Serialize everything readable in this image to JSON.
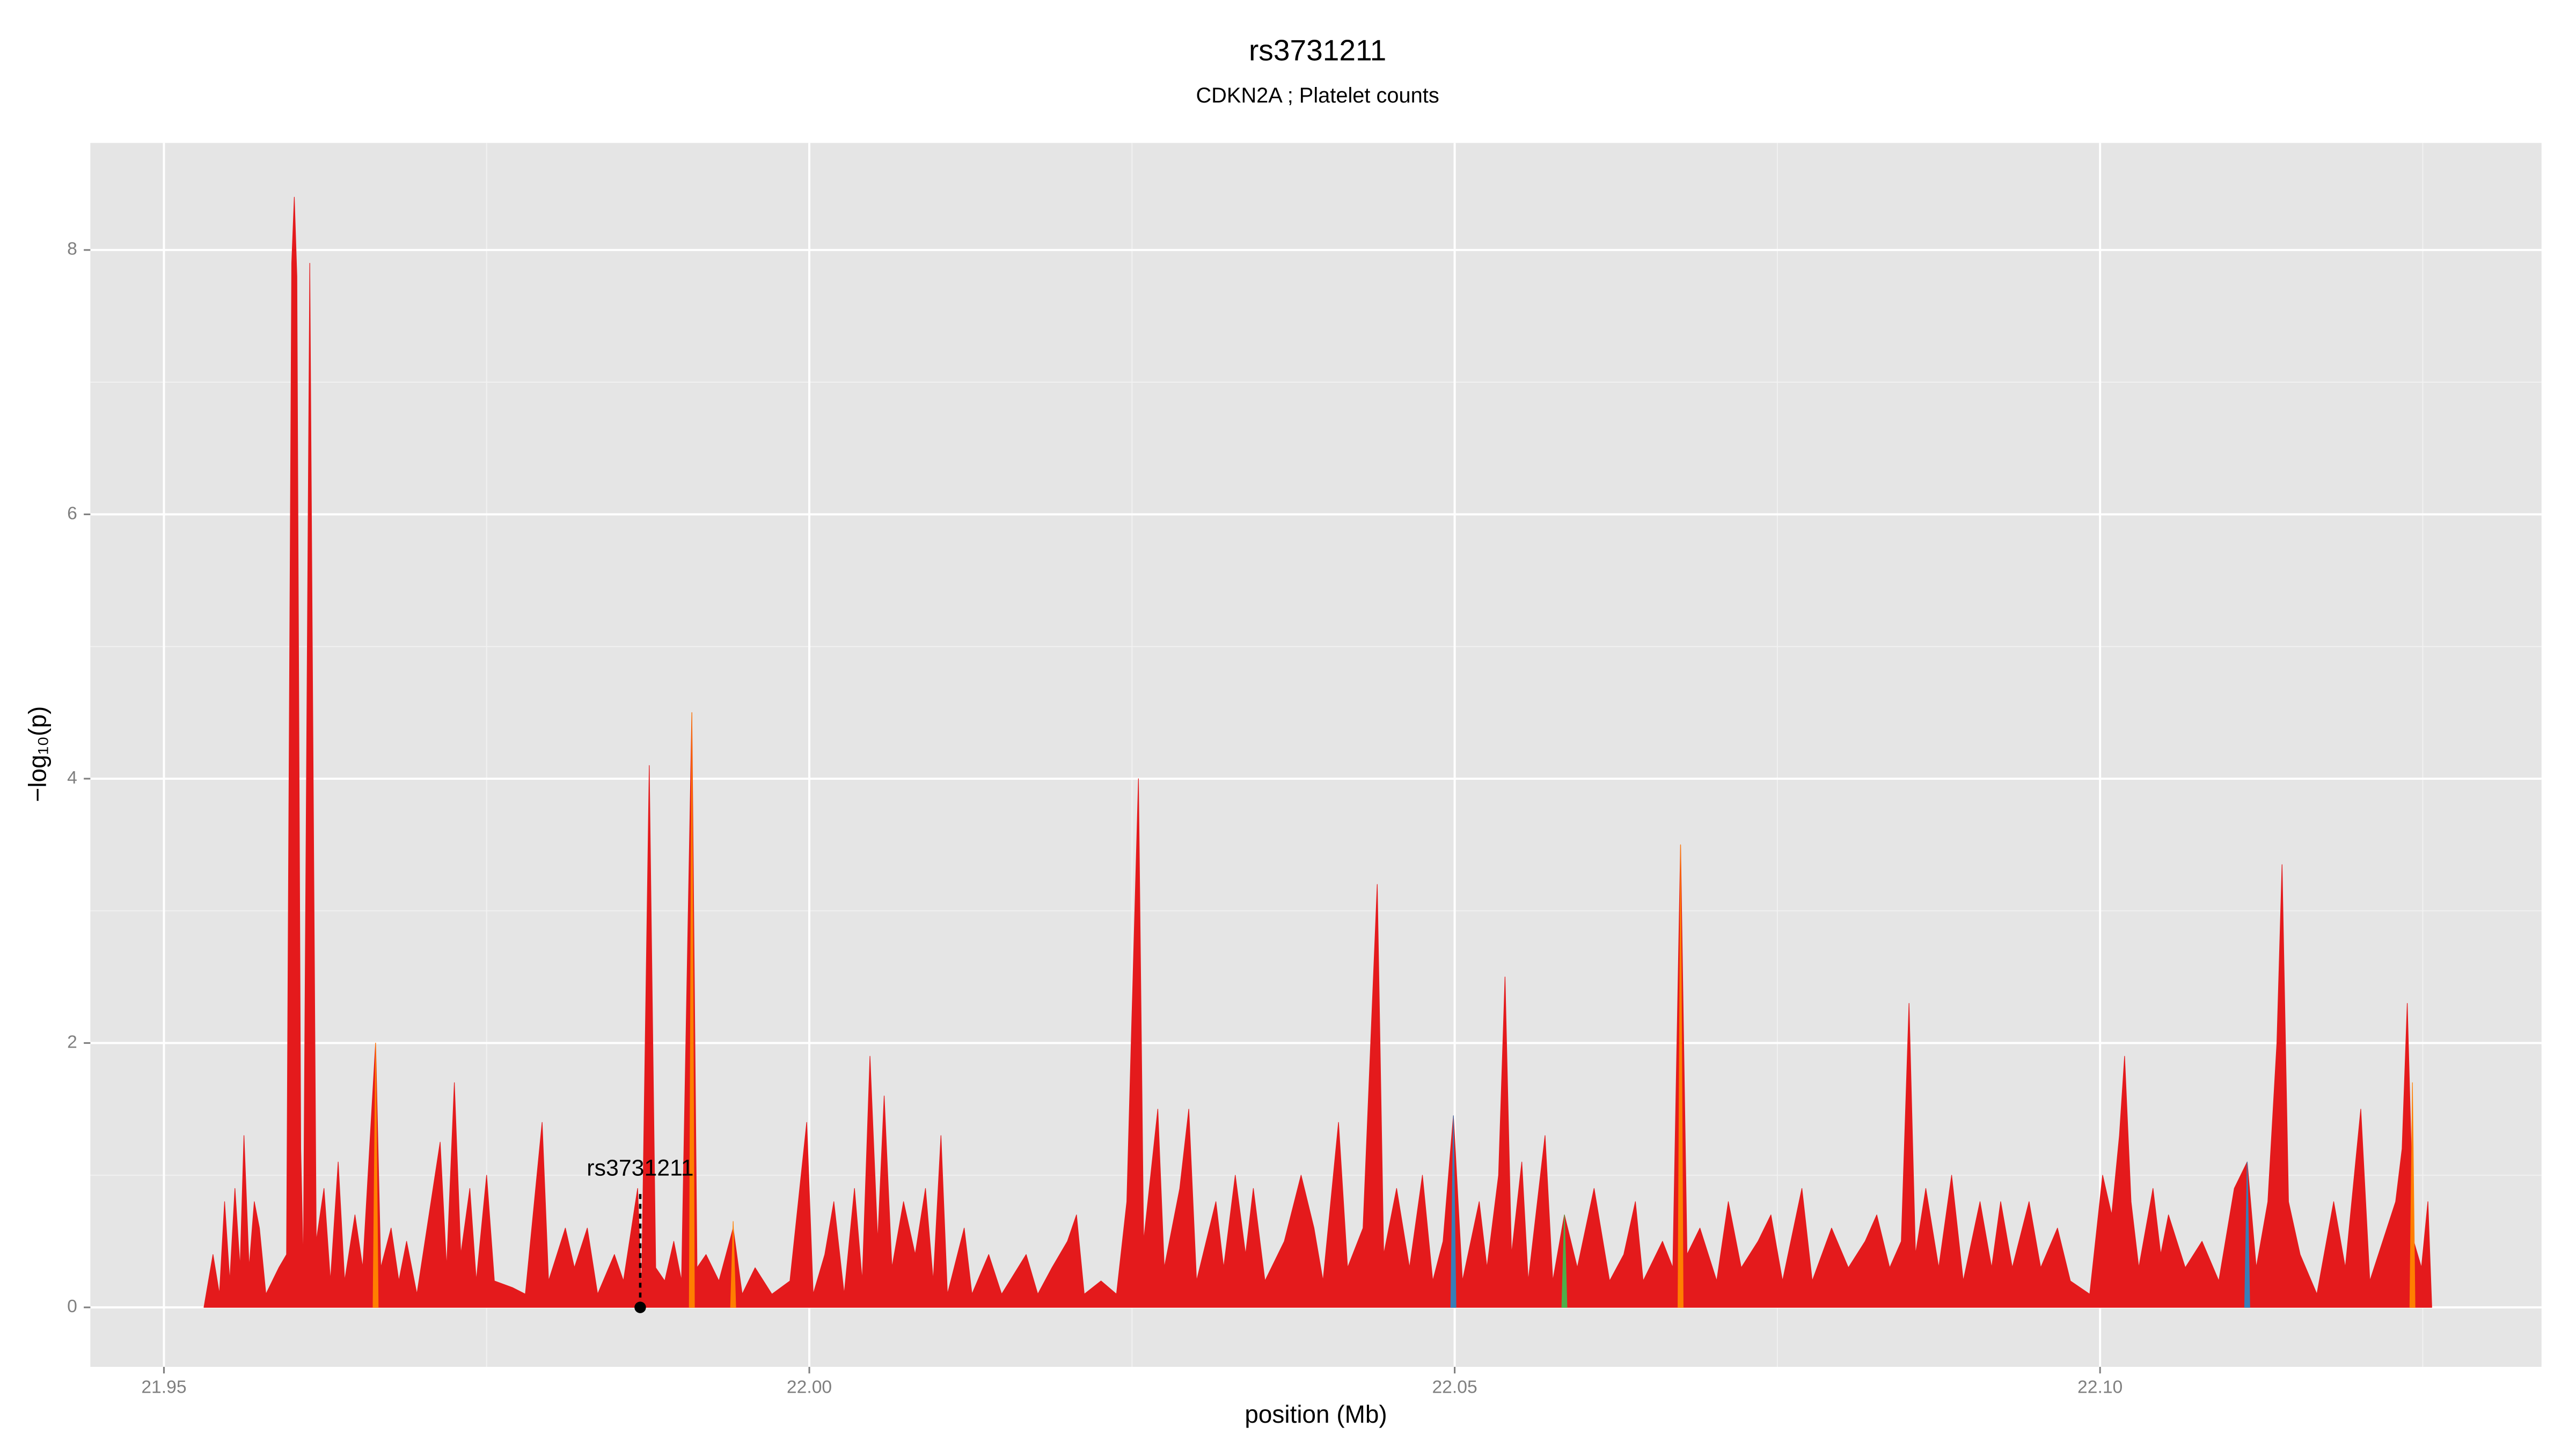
{
  "chart_data": {
    "type": "area",
    "title": "rs3731211",
    "subtitle": "CDKN2A ; Platelet counts",
    "x_label": "position (Mb)",
    "y_label": "−log₁₀(p)",
    "xlim": [
      21.9443,
      22.1342
    ],
    "ylim": [
      -0.45,
      8.81
    ],
    "xticks": [
      {
        "value": 21.95,
        "label": "21.95"
      },
      {
        "value": 22.0,
        "label": "22.00"
      },
      {
        "value": 22.05,
        "label": "22.05"
      },
      {
        "value": 22.1,
        "label": "22.10"
      }
    ],
    "yticks": [
      0,
      2,
      4,
      6,
      8
    ],
    "grid": true,
    "series": [
      {
        "color": "#e41a1c",
        "x": [
          21.9531,
          21.9538,
          21.9543,
          21.9547,
          21.9551,
          21.9555,
          21.9559,
          21.9562,
          21.9566,
          21.957,
          21.9574,
          21.9579,
          21.9589,
          21.9595,
          21.9599,
          21.9601,
          21.9603,
          21.9606,
          21.9608,
          21.9613,
          21.9618,
          21.9624,
          21.9629,
          21.9635,
          21.964,
          21.9648,
          21.9654,
          21.9664,
          21.9668,
          21.9676,
          21.9682,
          21.9688,
          21.9696,
          21.9714,
          21.9719,
          21.9725,
          21.973,
          21.9737,
          21.9742,
          21.975,
          21.9756,
          21.977,
          21.978,
          21.9793,
          21.9798,
          21.9811,
          21.9818,
          21.9828,
          21.9836,
          21.9849,
          21.9856,
          21.9867,
          21.987,
          21.9876,
          21.9881,
          21.9888,
          21.9895,
          21.9901,
          21.9909,
          21.9913,
          21.992,
          21.993,
          21.9941,
          21.9948,
          21.9958,
          21.9971,
          21.9985,
          21.9998,
          22.0003,
          22.0012,
          22.0019,
          22.0027,
          22.0035,
          22.0041,
          22.0047,
          22.0053,
          22.0058,
          22.0064,
          22.0073,
          22.0082,
          22.009,
          22.0096,
          22.0102,
          22.0107,
          22.012,
          22.0126,
          22.0139,
          22.0149,
          22.0168,
          22.0177,
          22.0188,
          22.02,
          22.0207,
          22.0213,
          22.0226,
          22.0238,
          22.0246,
          22.0255,
          22.0259,
          22.027,
          22.0275,
          22.0287,
          22.0294,
          22.03,
          22.0315,
          22.0321,
          22.033,
          22.0338,
          22.0344,
          22.0353,
          22.0368,
          22.0381,
          22.0391,
          22.0398,
          22.041,
          22.0417,
          22.0429,
          22.044,
          22.0445,
          22.0455,
          22.0465,
          22.0475,
          22.0483,
          22.0491,
          22.0499,
          22.0506,
          22.0519,
          22.0525,
          22.0534,
          22.0539,
          22.0544,
          22.0552,
          22.0557,
          22.057,
          22.0576,
          22.0585,
          22.0595,
          22.0608,
          22.062,
          22.0631,
          22.064,
          22.0646,
          22.0661,
          22.0669,
          22.0675,
          22.068,
          22.069,
          22.0703,
          22.0712,
          22.0722,
          22.0735,
          22.0745,
          22.0754,
          22.0769,
          22.0777,
          22.0792,
          22.0805,
          22.0818,
          22.0827,
          22.0837,
          22.0846,
          22.0852,
          22.0857,
          22.0865,
          22.0875,
          22.0885,
          22.0894,
          22.0907,
          22.0916,
          22.0923,
          22.0932,
          22.0945,
          22.0954,
          22.0967,
          22.0977,
          22.0992,
          22.1002,
          22.1009,
          22.1015,
          22.1019,
          22.1024,
          22.103,
          22.1041,
          22.1047,
          22.1053,
          22.1066,
          22.1079,
          22.1092,
          22.1104,
          22.1114,
          22.1121,
          22.113,
          22.1137,
          22.1141,
          22.1146,
          22.1155,
          22.1168,
          22.1181,
          22.119,
          22.1202,
          22.1209,
          22.1219,
          22.1229,
          22.1234,
          22.1238,
          22.1243,
          22.1249,
          22.1254,
          22.1257
        ],
        "values": [
          0,
          0.4,
          0.1,
          0.8,
          0.2,
          0.9,
          0.3,
          1.3,
          0.3,
          0.8,
          0.6,
          0.1,
          0.3,
          0.4,
          7.9,
          8.4,
          7.8,
          1.2,
          0.3,
          7.9,
          0.5,
          0.9,
          0.2,
          1.1,
          0.2,
          0.7,
          0.3,
          2.0,
          0.3,
          0.6,
          0.2,
          0.5,
          0.1,
          1.25,
          0.3,
          1.7,
          0.4,
          0.9,
          0.2,
          1.0,
          0.2,
          0.15,
          0.1,
          1.4,
          0.2,
          0.6,
          0.3,
          0.6,
          0.1,
          0.4,
          0.2,
          0.9,
          0.1,
          4.1,
          0.3,
          0.2,
          0.5,
          0.2,
          4.5,
          0.3,
          0.4,
          0.2,
          0.6,
          0.1,
          0.3,
          0.1,
          0.2,
          1.4,
          0.1,
          0.4,
          0.8,
          0.1,
          0.9,
          0.2,
          1.9,
          0.5,
          1.6,
          0.3,
          0.8,
          0.4,
          0.9,
          0.2,
          1.3,
          0.1,
          0.6,
          0.1,
          0.4,
          0.1,
          0.4,
          0.1,
          0.3,
          0.5,
          0.7,
          0.1,
          0.2,
          0.1,
          0.8,
          4.0,
          0.5,
          1.5,
          0.3,
          0.9,
          1.5,
          0.2,
          0.8,
          0.3,
          1.0,
          0.4,
          0.9,
          0.2,
          0.5,
          1.0,
          0.6,
          0.2,
          1.4,
          0.3,
          0.6,
          3.2,
          0.4,
          0.9,
          0.3,
          1.0,
          0.2,
          0.5,
          1.45,
          0.2,
          0.8,
          0.3,
          1.0,
          2.5,
          0.4,
          1.1,
          0.2,
          1.3,
          0.2,
          0.7,
          0.3,
          0.9,
          0.2,
          0.4,
          0.8,
          0.2,
          0.5,
          0.3,
          3.5,
          0.4,
          0.6,
          0.2,
          0.8,
          0.3,
          0.5,
          0.7,
          0.2,
          0.9,
          0.2,
          0.6,
          0.3,
          0.5,
          0.7,
          0.3,
          0.5,
          2.3,
          0.4,
          0.9,
          0.3,
          1.0,
          0.2,
          0.8,
          0.3,
          0.8,
          0.3,
          0.8,
          0.3,
          0.6,
          0.2,
          0.1,
          1.0,
          0.7,
          1.3,
          1.9,
          0.8,
          0.3,
          0.9,
          0.4,
          0.7,
          0.3,
          0.5,
          0.2,
          0.9,
          1.1,
          0.3,
          0.8,
          2.0,
          3.35,
          0.8,
          0.4,
          0.1,
          0.8,
          0.3,
          1.5,
          0.2,
          0.5,
          0.8,
          1.2,
          2.3,
          0.5,
          0.3,
          0.8,
          0
        ]
      },
      {
        "color": "#ff7f00",
        "x": [
          21.9662,
          21.9664,
          21.9666,
          null,
          21.9907,
          21.9909,
          21.9911,
          null,
          21.9939,
          21.9941,
          21.9943,
          null,
          22.0673,
          22.0675,
          22.0677,
          null,
          22.124,
          22.1242,
          22.1244
        ],
        "values": [
          0,
          2.0,
          0,
          null,
          0,
          4.5,
          0,
          null,
          0,
          0.65,
          0,
          null,
          0,
          3.5,
          0,
          null,
          0,
          1.7,
          0
        ]
      },
      {
        "color": "#377eb8",
        "x": [
          22.0497,
          22.0499,
          22.0501,
          null,
          22.1112,
          22.1114,
          22.1116
        ],
        "values": [
          0,
          1.45,
          0,
          null,
          0,
          1.1,
          0
        ]
      },
      {
        "color": "#4daf4a",
        "x": [
          22.0583,
          22.0585,
          22.0587
        ],
        "values": [
          0,
          0.7,
          0
        ]
      }
    ],
    "annotation": {
      "label": "rs3731211",
      "x": 21.9869,
      "y": 0
    }
  }
}
